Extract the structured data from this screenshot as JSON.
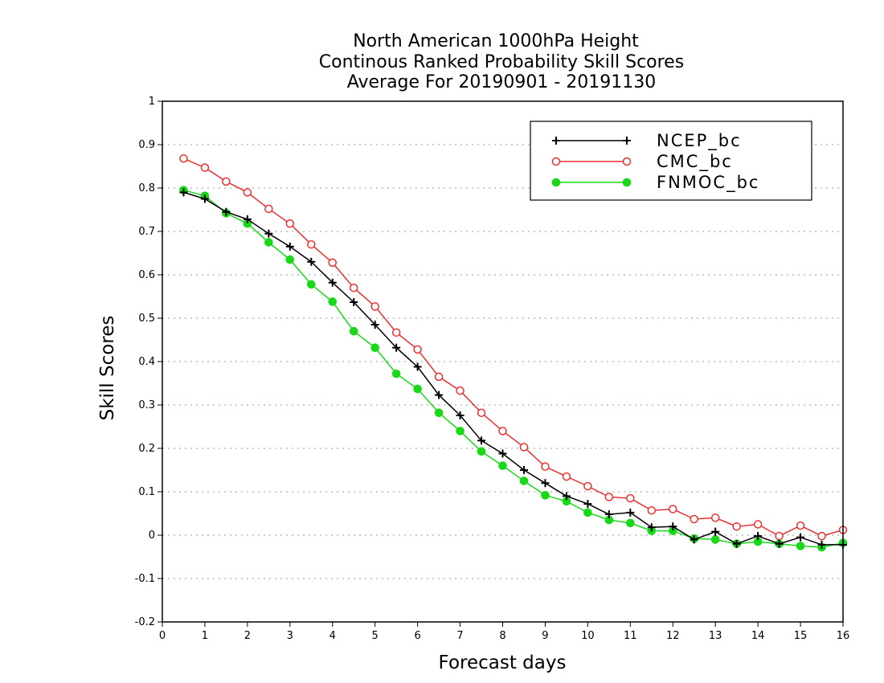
{
  "chart_data": {
    "type": "line",
    "title": [
      "North American 1000hPa Height",
      "Continous Ranked Probability Skill Scores",
      "Average For 20190901 - 20191130"
    ],
    "xlabel": "Forecast days",
    "ylabel": "Skill Scores",
    "xlim": [
      0,
      16
    ],
    "ylim": [
      -0.2,
      1
    ],
    "xticks": [
      "0",
      "1",
      "2",
      "3",
      "4",
      "5",
      "6",
      "7",
      "8",
      "9",
      "10",
      "11",
      "12",
      "13",
      "14",
      "15",
      "16"
    ],
    "yticks": [
      "-0.2",
      "-0.1",
      "0",
      "0.1",
      "0.2",
      "0.3",
      "0.4",
      "0.5",
      "0.6",
      "0.7",
      "0.8",
      "0.9",
      "1"
    ],
    "grid": true,
    "legend_position": "top-right",
    "x": [
      0.5,
      1,
      1.5,
      2,
      2.5,
      3,
      3.5,
      4,
      4.5,
      5,
      5.5,
      6,
      6.5,
      7,
      7.5,
      8,
      8.5,
      9,
      9.5,
      10,
      10.5,
      11,
      11.5,
      12,
      12.5,
      13,
      13.5,
      14,
      14.5,
      15,
      15.5,
      16
    ],
    "series": [
      {
        "name": "NCEP_bc",
        "color": "#000000",
        "marker": "plus",
        "values": [
          0.79,
          0.775,
          0.745,
          0.728,
          0.695,
          0.665,
          0.63,
          0.582,
          0.537,
          0.485,
          0.432,
          0.388,
          0.323,
          0.276,
          0.218,
          0.188,
          0.15,
          0.12,
          0.09,
          0.072,
          0.048,
          0.052,
          0.018,
          0.02,
          -0.01,
          0.008,
          -0.02,
          -0.002,
          -0.02,
          -0.005,
          -0.022,
          -0.022
        ]
      },
      {
        "name": "CMC_bc",
        "color": "#e83030",
        "marker": "open-circle",
        "values": [
          0.868,
          0.847,
          0.815,
          0.79,
          0.752,
          0.718,
          0.67,
          0.628,
          0.57,
          0.527,
          0.467,
          0.428,
          0.365,
          0.333,
          0.282,
          0.24,
          0.203,
          0.158,
          0.135,
          0.113,
          0.088,
          0.085,
          0.057,
          0.06,
          0.037,
          0.04,
          0.02,
          0.025,
          -0.002,
          0.022,
          -0.002,
          0.012
        ]
      },
      {
        "name": "FNMOC_bc",
        "color": "#18d818",
        "marker": "filled-circle",
        "values": [
          0.795,
          0.782,
          0.742,
          0.718,
          0.675,
          0.635,
          0.578,
          0.538,
          0.47,
          0.432,
          0.372,
          0.337,
          0.282,
          0.24,
          0.193,
          0.16,
          0.125,
          0.092,
          0.078,
          0.052,
          0.035,
          0.028,
          0.01,
          0.01,
          -0.008,
          -0.01,
          -0.02,
          -0.015,
          -0.02,
          -0.025,
          -0.028,
          -0.018
        ]
      }
    ]
  }
}
